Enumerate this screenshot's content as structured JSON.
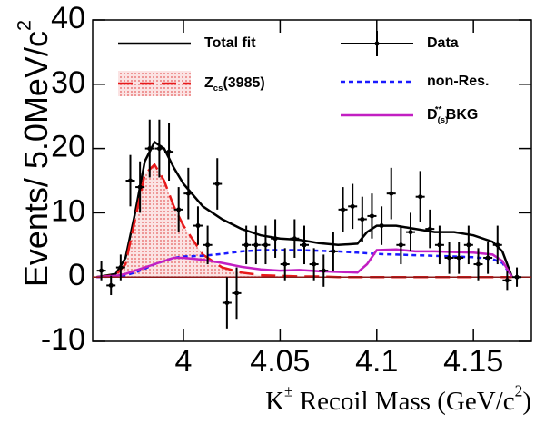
{
  "chart_data": {
    "type": "errorbar-fit",
    "xlim": [
      3.953,
      4.18
    ],
    "ylim": [
      -10,
      40
    ],
    "xticks": [
      4,
      4.05,
      4.1,
      4.15
    ],
    "yticks": [
      -10,
      0,
      10,
      20,
      30,
      40
    ],
    "x_label": [
      {
        "text": "K"
      },
      {
        "text": "±",
        "sup": true
      },
      {
        "text": " Recoil Mass (GeV/c"
      },
      {
        "text": "2",
        "sup": true
      },
      {
        "text": ")"
      }
    ],
    "y_label": [
      {
        "text": "Events/ 5.0MeV/c"
      },
      {
        "text": "2",
        "sup": true
      }
    ],
    "data": {
      "name": [
        {
          "text": "Data"
        }
      ],
      "color": "#000000",
      "x": [
        3.9575,
        3.9625,
        3.9675,
        3.9725,
        3.9775,
        3.9825,
        3.9875,
        3.9925,
        3.9975,
        4.0025,
        4.0075,
        4.0125,
        4.0175,
        4.0225,
        4.0275,
        4.0325,
        4.0375,
        4.0425,
        4.0475,
        4.0525,
        4.0575,
        4.0625,
        4.0675,
        4.0725,
        4.0775,
        4.0825,
        4.0875,
        4.0925,
        4.0975,
        4.1025,
        4.1075,
        4.1125,
        4.1175,
        4.1225,
        4.1275,
        4.1325,
        4.1375,
        4.1425,
        4.1475,
        4.1525,
        4.1575,
        4.1625,
        4.1675,
        4.1725
      ],
      "values": [
        1,
        -1.3,
        1.5,
        15,
        14,
        20,
        20,
        19.5,
        10.5,
        13,
        8,
        5,
        14.5,
        -4,
        -2.5,
        5,
        5,
        5,
        6,
        2,
        6,
        5,
        2,
        1,
        4,
        10.5,
        11,
        9,
        9.5,
        8,
        13,
        5,
        7,
        12.5,
        7.5,
        5,
        3,
        3,
        5,
        2,
        3,
        5,
        -0.5,
        0
      ],
      "errors": [
        1.5,
        1.5,
        2,
        4,
        4,
        4.5,
        4.5,
        4.5,
        3.5,
        4,
        3,
        3,
        4,
        4,
        4,
        3,
        3,
        3,
        3,
        2.5,
        3,
        3,
        2.5,
        2.5,
        3,
        3.5,
        3.5,
        3.5,
        3.5,
        3,
        4,
        3,
        3,
        4,
        3,
        3,
        2.5,
        2.5,
        3,
        2.5,
        2.5,
        3,
        1.5,
        1.5
      ]
    },
    "curve_x": [
      3.955,
      3.965,
      3.97,
      3.975,
      3.98,
      3.985,
      3.99,
      3.995,
      4.0,
      4.01,
      4.02,
      4.03,
      4.04,
      4.05,
      4.06,
      4.07,
      4.08,
      4.09,
      4.095,
      4.1,
      4.11,
      4.12,
      4.13,
      4.14,
      4.15,
      4.16,
      4.165,
      4.17
    ],
    "curves": [
      {
        "name": [
          {
            "text": "Total fit"
          }
        ],
        "color": "#000000",
        "style": "solid",
        "values": [
          0,
          0.5,
          3,
          10,
          18,
          21,
          20,
          17,
          14.5,
          11,
          9,
          7.5,
          6.5,
          6,
          5.8,
          5.3,
          5.0,
          5.2,
          7,
          8,
          8,
          7.5,
          7,
          7,
          6.5,
          5.5,
          4,
          0
        ]
      },
      {
        "name": [
          {
            "text": "Z"
          },
          {
            "text": "cs",
            "sub": true
          },
          {
            "text": "(3985)"
          }
        ],
        "color": "#e8191a",
        "style": "dashed",
        "fill": "#f4b6b6",
        "values": [
          0,
          0.3,
          2,
          9,
          16,
          17.5,
          15,
          11,
          8,
          3.5,
          1.5,
          0.7,
          0.3,
          0.2,
          0.1,
          0.1,
          0,
          0,
          0,
          0,
          0,
          0,
          0,
          0,
          0,
          0,
          0,
          0
        ]
      },
      {
        "name": [
          {
            "text": "non-Res."
          }
        ],
        "color": "#1a1aff",
        "style": "dotted",
        "values": [
          0,
          0.1,
          0.3,
          0.7,
          1.3,
          2,
          2.5,
          3,
          3.2,
          3.3,
          3.6,
          4,
          4.2,
          4.2,
          4.2,
          4.1,
          4.0,
          3.8,
          3.7,
          3.6,
          3.5,
          3.4,
          3.3,
          3.2,
          3.1,
          2.8,
          2.2,
          0
        ]
      },
      {
        "name": [
          {
            "text": "D"
          },
          {
            "text": "(s)",
            "sub": true
          },
          {
            "text": "**",
            "sup": true
          },
          {
            "text": " BKG"
          }
        ],
        "color": "#c21fc2",
        "style": "solid",
        "values": [
          0,
          0.2,
          0.5,
          1,
          1.5,
          2,
          2.5,
          3,
          3,
          2.7,
          2.2,
          1.6,
          1.2,
          1.0,
          1.1,
          0.9,
          0.8,
          0.7,
          2,
          4.2,
          4.3,
          4.0,
          4.0,
          3.9,
          3.8,
          3.5,
          2.5,
          0
        ]
      }
    ]
  }
}
